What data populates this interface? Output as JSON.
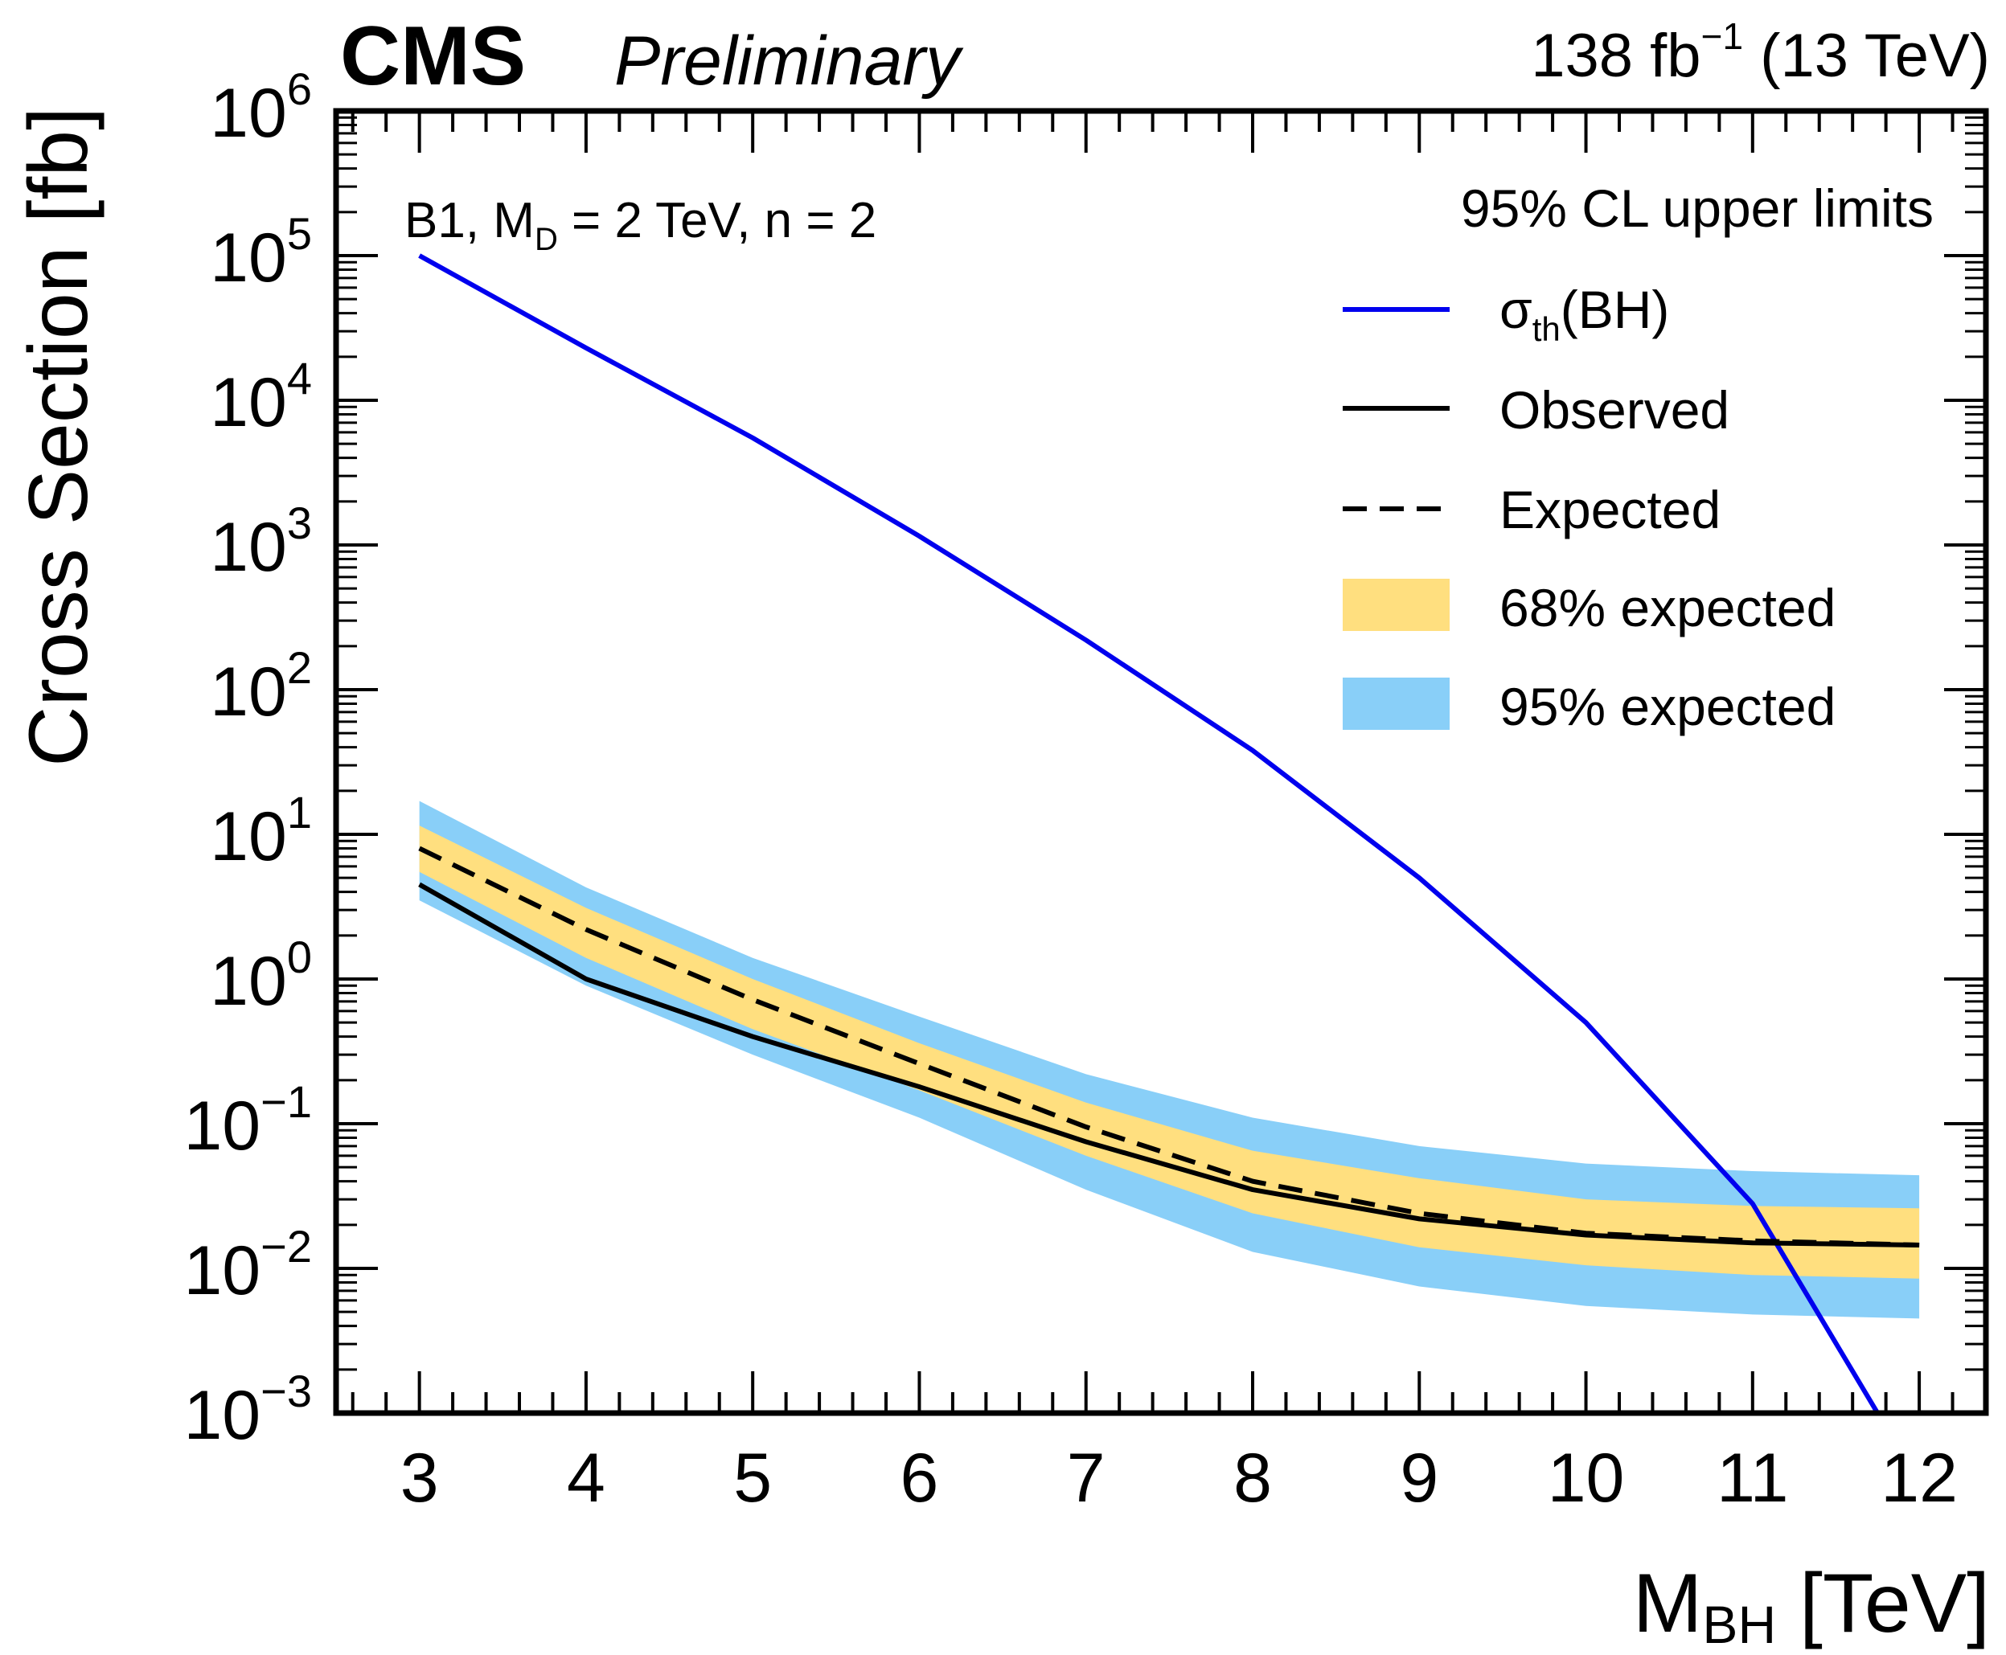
{
  "chart_data": {
    "type": "line",
    "experiment_label": "CMS",
    "status_label": "Preliminary",
    "lumi_label": {
      "value": "138 fb",
      "exponent": "−1",
      "energy": " (13 TeV)"
    },
    "model_label": {
      "prefix": "B1, M",
      "subscript": "D",
      "suffix": " = 2 TeV, n = 2"
    },
    "legend_header": "95% CL upper limits",
    "xlabel": {
      "main": "M",
      "subscript": "BH",
      "unit": " [TeV]"
    },
    "ylabel": "Cross Section [fb]",
    "ylog": true,
    "xlim": [
      2.5,
      12.4
    ],
    "ylim_exponent": [
      -3,
      6
    ],
    "x_ticks": [
      "3",
      "4",
      "5",
      "6",
      "7",
      "8",
      "9",
      "10",
      "11",
      "12"
    ],
    "y_ticks": [
      {
        "base": "10",
        "exp": "−3"
      },
      {
        "base": "10",
        "exp": "−2"
      },
      {
        "base": "10",
        "exp": "−1"
      },
      {
        "base": "10",
        "exp": "0"
      },
      {
        "base": "10",
        "exp": "1"
      },
      {
        "base": "10",
        "exp": "2"
      },
      {
        "base": "10",
        "exp": "3"
      },
      {
        "base": "10",
        "exp": "4"
      },
      {
        "base": "10",
        "exp": "5"
      },
      {
        "base": "10",
        "exp": "6"
      }
    ],
    "x": [
      3,
      4,
      5,
      6,
      7,
      8,
      9,
      10,
      11,
      12
    ],
    "series": [
      {
        "name": "σ_th(BH)",
        "label_main": "σ",
        "label_sub": "th",
        "label_rest": "(BH)",
        "color": "#0000ee",
        "style": "solid",
        "x": [
          3,
          4,
          5,
          6,
          7,
          8,
          9,
          10,
          11,
          11.75
        ],
        "values": [
          100000,
          23000,
          5500,
          1150,
          220,
          38,
          5,
          0.5,
          0.028,
          0.001
        ]
      },
      {
        "name": "Observed",
        "color": "#000000",
        "style": "solid",
        "values": [
          4.5,
          1.0,
          0.4,
          0.18,
          0.075,
          0.035,
          0.022,
          0.017,
          0.015,
          0.0145
        ]
      },
      {
        "name": "Expected",
        "color": "#000000",
        "style": "dashed",
        "values": [
          8.0,
          2.2,
          0.72,
          0.26,
          0.095,
          0.04,
          0.024,
          0.0175,
          0.0155,
          0.0145
        ]
      }
    ],
    "bands": [
      {
        "name": "68% expected",
        "color": "#ffdf7f",
        "lower": [
          5.5,
          1.4,
          0.45,
          0.17,
          0.06,
          0.024,
          0.014,
          0.0105,
          0.009,
          0.0085
        ],
        "upper": [
          11.5,
          3.1,
          1.0,
          0.36,
          0.14,
          0.065,
          0.042,
          0.03,
          0.027,
          0.026
        ]
      },
      {
        "name": "95% expected",
        "color": "#89cff8",
        "lower": [
          3.5,
          0.9,
          0.3,
          0.11,
          0.035,
          0.013,
          0.0075,
          0.0055,
          0.0048,
          0.0045
        ],
        "upper": [
          17.0,
          4.3,
          1.4,
          0.55,
          0.22,
          0.11,
          0.07,
          0.053,
          0.047,
          0.044
        ]
      }
    ],
    "legend_entries": [
      "σ_th(BH)",
      "Observed",
      "Expected",
      "68% expected",
      "95% expected"
    ],
    "legend_position": "top-right"
  }
}
